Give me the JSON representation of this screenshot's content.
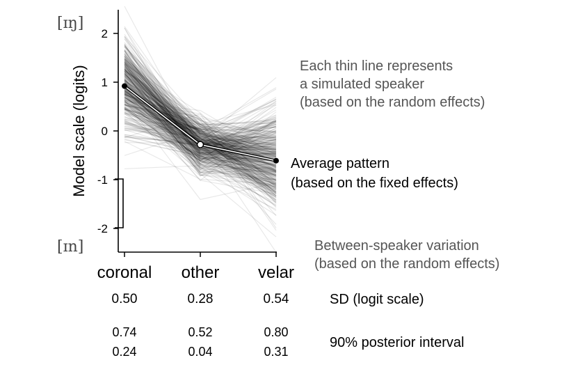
{
  "chart_data": {
    "type": "line",
    "categories": [
      "coronal",
      "other",
      "velar"
    ],
    "ylabel": "Model scale (logits)",
    "ylim": [
      -2.5,
      2.5
    ],
    "yticks": [
      "2",
      "1",
      "0",
      "-1",
      "-2"
    ],
    "ytick_values": [
      2,
      1,
      0,
      -1,
      -2
    ],
    "average_pattern": [
      0.92,
      -0.28,
      -0.61
    ],
    "random_effect_sd": [
      0.5,
      0.28,
      0.54
    ],
    "speaker_line_count": 400,
    "ipa_top": "[ɪŋ]",
    "ipa_bottom": "[ɪn]",
    "annotations": {
      "speakers": [
        "Each thin line represents",
        "a simulated speaker",
        "(based on the random effects)"
      ],
      "average": [
        "Average pattern",
        "(based on the fixed effects)"
      ],
      "variation": [
        "Between-speaker variation",
        "(based on the random effects)"
      ]
    },
    "table": {
      "sd_values": [
        "0.50",
        "0.28",
        "0.54"
      ],
      "sd_label": "SD (logit scale)",
      "upper_values": [
        "0.74",
        "0.52",
        "0.80"
      ],
      "lower_values": [
        "0.24",
        "0.04",
        "0.31"
      ],
      "interval_label": "90% posterior interval"
    },
    "colors": {
      "speaker_line": "#000000",
      "average_line": "#000000",
      "average_inner": "#ffffff",
      "annotation_grey": "#555555"
    }
  }
}
